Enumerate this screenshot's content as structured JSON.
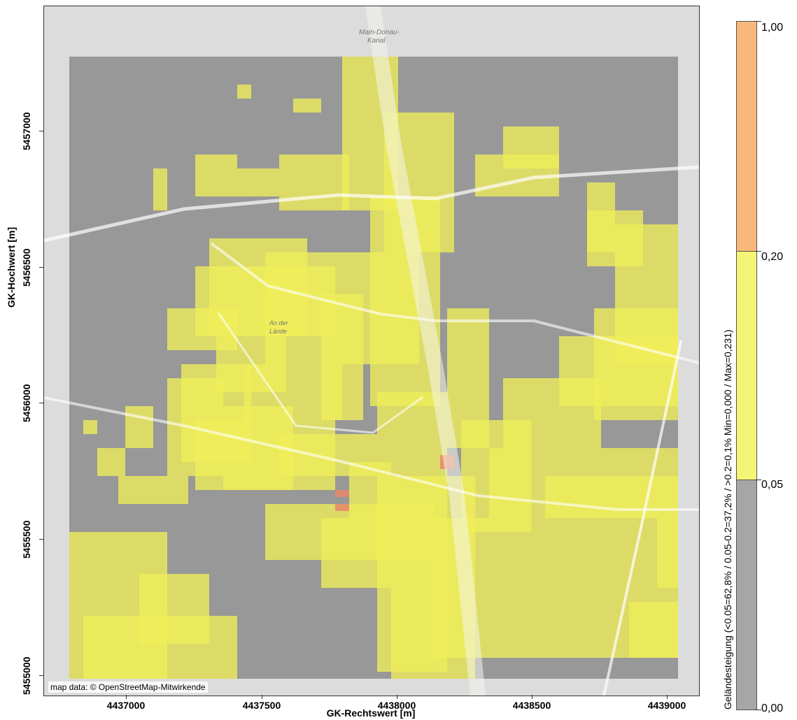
{
  "map": {
    "attribution": "map data: © OpenStreetMap-Mitwirkende",
    "labels": [
      {
        "text": "Main-Donau-",
        "name": "canal-label-1"
      },
      {
        "text": "Kanal",
        "name": "canal-label-2"
      },
      {
        "text": "An der",
        "name": "place-label-1"
      },
      {
        "text": "Lände",
        "name": "place-label-2"
      }
    ]
  },
  "axes": {
    "xlabel": "GK-Rechtswert [m]",
    "ylabel": "GK-Hochwert [m]",
    "xticks": [
      "4437000",
      "4437500",
      "4438000",
      "4438500",
      "4439000"
    ],
    "yticks": [
      "5457000",
      "5456500",
      "5456000",
      "5455500",
      "5455000"
    ]
  },
  "legend": {
    "title": "Geländesteigung (<0.05=62,8% / 0.05-0.2=37,2% / >0.2=0,1%   Min=0,000 / Max=0,231)",
    "breaks": [
      "1,00",
      "0,20",
      "0,05",
      "0,00"
    ],
    "classes": [
      {
        "name": "<0.05",
        "share": "62,8%",
        "color": "#a6a6a6"
      },
      {
        "name": "0.05-0.2",
        "share": "37,2%",
        "color": "#f5f575"
      },
      {
        "name": ">0.2",
        "share": "0,1%",
        "color": "#f9b87a"
      }
    ]
  },
  "colors": {
    "low": "#8c8c8c",
    "mid": "#f0ee5a",
    "high": "#e8866a",
    "map_bg": "#e6e6e6",
    "road": "#ffffff",
    "highway": "#f0f0e0"
  }
}
